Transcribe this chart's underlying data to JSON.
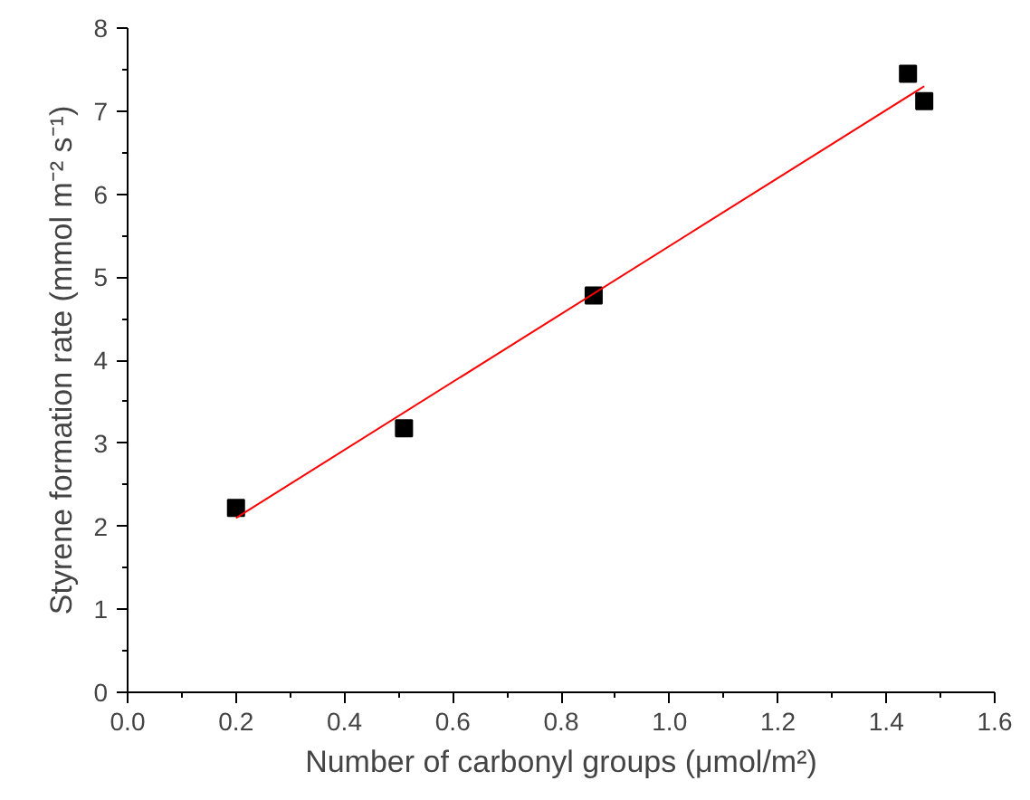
{
  "chart_data": {
    "type": "scatter",
    "xlabel": "Number of carbonyl groups (μmol/m²)",
    "ylabel": "Styrene formation rate (mmol m⁻² s⁻¹)",
    "x": [
      0.2,
      0.51,
      0.86,
      1.44,
      1.47
    ],
    "series": [
      {
        "color": "#000000",
        "marker": "square",
        "values": [
          2.22,
          3.18,
          4.78,
          7.45,
          7.12
        ]
      },
      {
        "type": "line",
        "color": "#ff0000",
        "x": [
          0.2,
          1.47
        ],
        "values": [
          2.1,
          7.3
        ],
        "line_style": "solid"
      }
    ],
    "xlim": [
      0.0,
      1.6
    ],
    "xticks": [
      {
        "value": 0.0,
        "label": "0.0"
      },
      0.2,
      0.4,
      0.6,
      0.8,
      {
        "value": 1.0,
        "label": "1.0"
      },
      1.2,
      1.4,
      1.6
    ],
    "ylim": [
      0,
      8
    ],
    "yticks": [
      0,
      1,
      2,
      3,
      4,
      5,
      6,
      7,
      8
    ],
    "grid": false
  }
}
